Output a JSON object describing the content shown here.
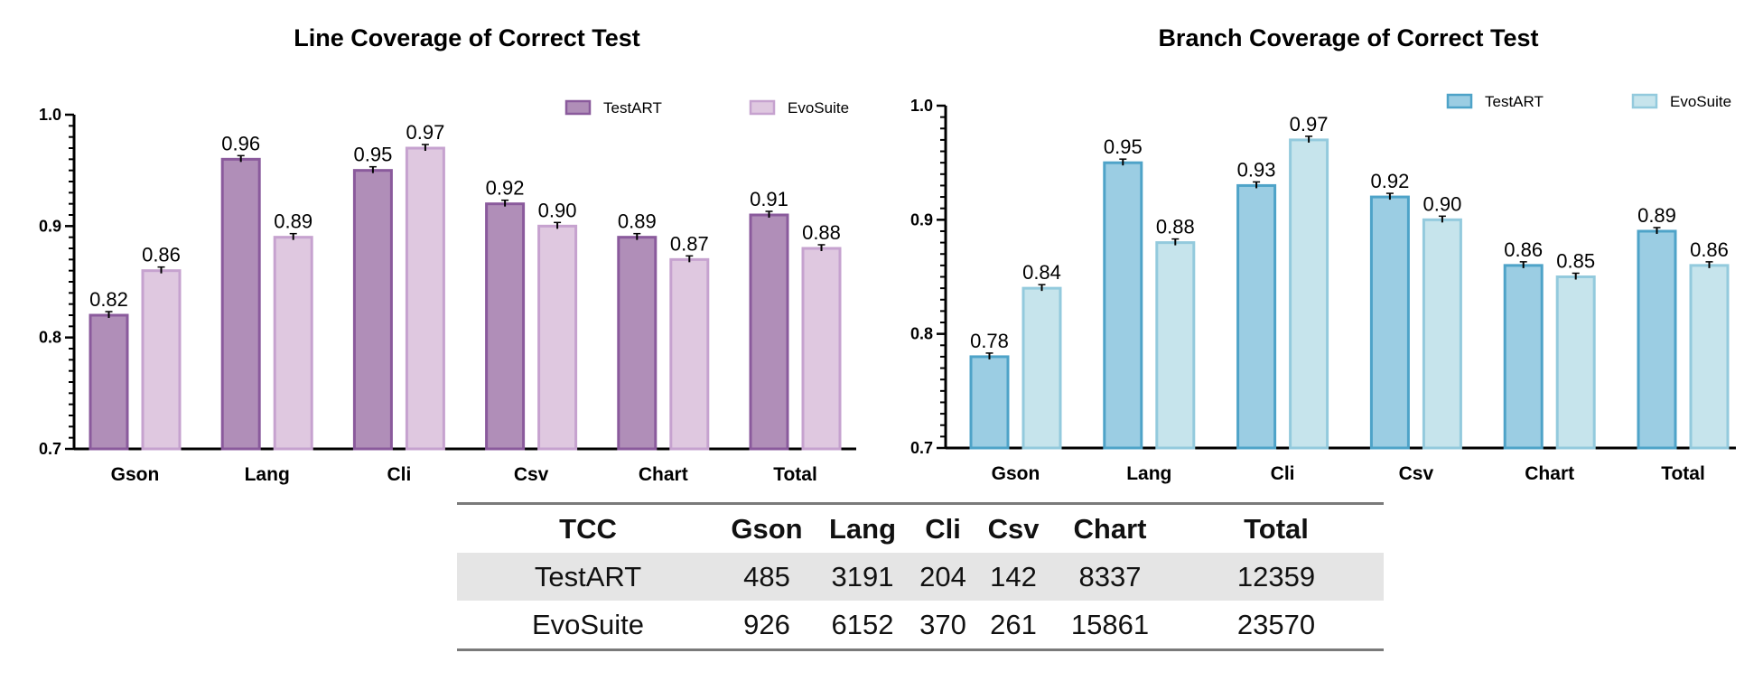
{
  "chart_data": [
    {
      "type": "bar",
      "title": "Line Coverage of Correct Test",
      "categories": [
        "Gson",
        "Lang",
        "Cli",
        "Csv",
        "Chart",
        "Total"
      ],
      "series": [
        {
          "name": "TestART",
          "values": [
            0.82,
            0.96,
            0.95,
            0.92,
            0.89,
            0.91
          ],
          "labels": [
            "0.82",
            "0.96",
            "0.95",
            "0.92",
            "0.89",
            "0.91"
          ]
        },
        {
          "name": "EvoSuite",
          "values": [
            0.86,
            0.89,
            0.97,
            0.9,
            0.87,
            0.88
          ],
          "labels": [
            "0.86",
            "0.89",
            "0.97",
            "0.90",
            "0.87",
            "0.88"
          ]
        }
      ],
      "ylim": [
        0.7,
        1.0
      ],
      "yticks": [
        "0.7",
        "0.8",
        "0.9",
        "1.0"
      ],
      "legend": "top-right",
      "colors": {
        "fill": [
          "#b08eb8",
          "#dfc8e0"
        ],
        "stroke": [
          "#8a5a9c",
          "#c6a2cf"
        ]
      }
    },
    {
      "type": "bar",
      "title": "Branch Coverage of Correct Test",
      "categories": [
        "Gson",
        "Lang",
        "Cli",
        "Csv",
        "Chart",
        "Total"
      ],
      "series": [
        {
          "name": "TestART",
          "values": [
            0.78,
            0.95,
            0.93,
            0.92,
            0.86,
            0.89
          ],
          "labels": [
            "0.78",
            "0.95",
            "0.93",
            "0.92",
            "0.86",
            "0.89"
          ]
        },
        {
          "name": "EvoSuite",
          "values": [
            0.84,
            0.88,
            0.97,
            0.9,
            0.85,
            0.86
          ],
          "labels": [
            "0.84",
            "0.88",
            "0.97",
            "0.90",
            "0.85",
            "0.86"
          ]
        }
      ],
      "ylim": [
        0.7,
        1.0
      ],
      "yticks": [
        "0.7",
        "0.8",
        "0.9",
        "1.0"
      ],
      "legend": "top-right",
      "colors": {
        "fill": [
          "#9bcde3",
          "#c6e4ec"
        ],
        "stroke": [
          "#4ea3c8",
          "#93cadd"
        ]
      }
    }
  ],
  "table": {
    "headers": [
      "TCC",
      "Gson",
      "Lang",
      "Cli",
      "Csv",
      "Chart",
      "Total"
    ],
    "rows": [
      [
        "TestART",
        "485",
        "3191",
        "204",
        "142",
        "8337",
        "12359"
      ],
      [
        "EvoSuite",
        "926",
        "6152",
        "370",
        "261",
        "15861",
        "23570"
      ]
    ]
  }
}
